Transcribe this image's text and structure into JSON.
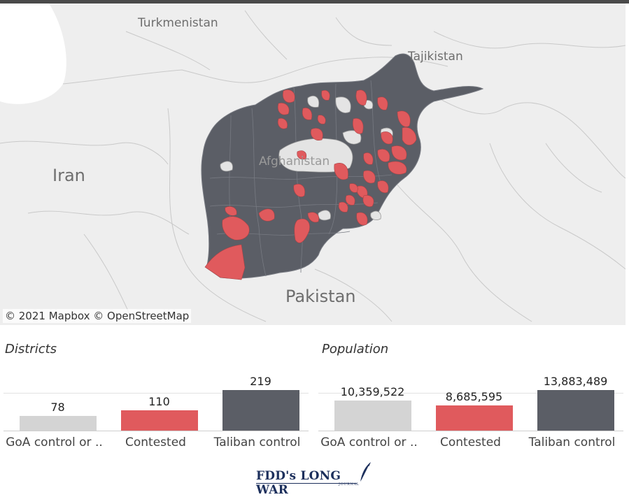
{
  "map": {
    "attribution": "© 2021 Mapbox  © OpenStreetMap",
    "labels": {
      "turkmenistan": "Turkmenistan",
      "tajikistan": "Tajikistan",
      "iran": "Iran",
      "afghanistan": "Afghanistan",
      "pakistan": "Pakistan"
    },
    "colors": {
      "taliban": "#5b5e66",
      "contested": "#e05a5d",
      "goa": "#d4d4d4",
      "background": "#eeeeee"
    }
  },
  "districts_title": "Districts",
  "population_title": "Population",
  "chart_data": [
    {
      "type": "bar",
      "title": "Districts",
      "categories": [
        "GoA control or ..",
        "Contested",
        "Taliban control"
      ],
      "values": [
        78,
        110,
        219
      ],
      "value_labels": [
        "78",
        "110",
        "219"
      ],
      "colors": [
        "#d4d4d4",
        "#e05a5d",
        "#5b5e66"
      ]
    },
    {
      "type": "bar",
      "title": "Population",
      "categories": [
        "GoA control or ..",
        "Contested",
        "Taliban control"
      ],
      "values": [
        10359522,
        8685595,
        13883489
      ],
      "value_labels": [
        "10,359,522",
        "8,685,595",
        "13,883,489"
      ],
      "colors": [
        "#d4d4d4",
        "#e05a5d",
        "#5b5e66"
      ]
    }
  ],
  "logo": {
    "text": "FDD's LONG WAR",
    "sub": "JOURNAL"
  }
}
